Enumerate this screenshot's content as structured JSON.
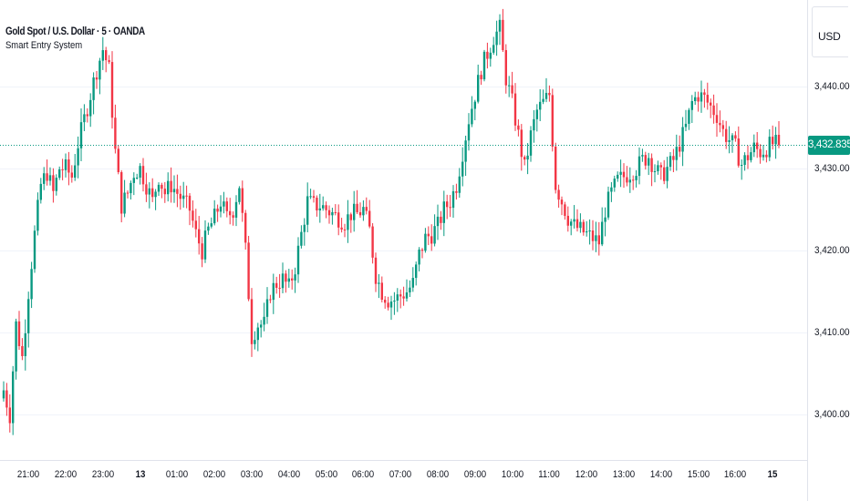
{
  "header": {
    "symbol_title": "Gold Spot / U.S. Dollar · 5 · OANDA",
    "indicator": "Smart Entry System"
  },
  "currency": "USD",
  "last_price_label": "3,432.835",
  "colors": {
    "up": "#089981",
    "down": "#f23645",
    "grid": "#f0f3fa",
    "last_price_line": "#089981"
  },
  "chart_data": {
    "type": "candlestick",
    "title": "Gold Spot / U.S. Dollar · 5 · OANDA",
    "currency": "USD",
    "y_ticks": [
      {
        "value": 3440,
        "label": "3,440.000"
      },
      {
        "value": 3430,
        "label": "3,430.000"
      },
      {
        "value": 3420,
        "label": "3,420.000"
      },
      {
        "value": 3410,
        "label": "3,410.000"
      },
      {
        "value": 3400,
        "label": "3,400.000"
      }
    ],
    "x_ticks": [
      {
        "label": "21:00",
        "bold": false,
        "i": 8
      },
      {
        "label": "22:00",
        "bold": false,
        "i": 20
      },
      {
        "label": "23:00",
        "bold": false,
        "i": 32
      },
      {
        "label": "13",
        "bold": true,
        "i": 44
      },
      {
        "label": "01:00",
        "bold": false,
        "i": 56
      },
      {
        "label": "02:00",
        "bold": false,
        "i": 68
      },
      {
        "label": "03:00",
        "bold": false,
        "i": 80
      },
      {
        "label": "04:00",
        "bold": false,
        "i": 92
      },
      {
        "label": "05:00",
        "bold": false,
        "i": 104
      },
      {
        "label": "06:00",
        "bold": false,
        "i": 116
      },
      {
        "label": "07:00",
        "bold": false,
        "i": 128
      },
      {
        "label": "08:00",
        "bold": false,
        "i": 140
      },
      {
        "label": "09:00",
        "bold": false,
        "i": 152
      },
      {
        "label": "10:00",
        "bold": false,
        "i": 164
      },
      {
        "label": "11:00",
        "bold": false,
        "i": 176
      },
      {
        "label": "12:00",
        "bold": false,
        "i": 188
      },
      {
        "label": "13:00",
        "bold": false,
        "i": 200
      },
      {
        "label": "14:00",
        "bold": false,
        "i": 212
      },
      {
        "label": "15:00",
        "bold": false,
        "i": 224
      },
      {
        "label": "16:00",
        "bold": false,
        "i": 236
      },
      {
        "label": "15",
        "bold": true,
        "i": 248
      }
    ],
    "ylim": [
      3394.5,
      3450.5
    ],
    "last_price": 3432.835,
    "close_keyframes": [
      [
        0,
        3403
      ],
      [
        2,
        3400
      ],
      [
        4,
        3411
      ],
      [
        6,
        3407
      ],
      [
        8,
        3415
      ],
      [
        10,
        3422
      ],
      [
        12,
        3428
      ],
      [
        14,
        3429.5
      ],
      [
        16,
        3427
      ],
      [
        18,
        3430
      ],
      [
        20,
        3430
      ],
      [
        22,
        3429
      ],
      [
        24,
        3433
      ],
      [
        26,
        3436
      ],
      [
        28,
        3439
      ],
      [
        30,
        3442
      ],
      [
        32,
        3444.5
      ],
      [
        34,
        3442
      ],
      [
        36,
        3432
      ],
      [
        38,
        3425.5
      ],
      [
        40,
        3427
      ],
      [
        42,
        3429.5
      ],
      [
        44,
        3430
      ],
      [
        46,
        3428
      ],
      [
        48,
        3426
      ],
      [
        50,
        3429
      ],
      [
        52,
        3427
      ],
      [
        54,
        3428
      ],
      [
        56,
        3427
      ],
      [
        58,
        3426
      ],
      [
        60,
        3425
      ],
      [
        62,
        3422
      ],
      [
        64,
        3420
      ],
      [
        66,
        3422.5
      ],
      [
        68,
        3424
      ],
      [
        70,
        3426
      ],
      [
        72,
        3424
      ],
      [
        74,
        3425
      ],
      [
        76,
        3428
      ],
      [
        78,
        3420
      ],
      [
        80,
        3409.5
      ],
      [
        82,
        3411
      ],
      [
        84,
        3411
      ],
      [
        86,
        3415
      ],
      [
        88,
        3416
      ],
      [
        90,
        3416.5
      ],
      [
        92,
        3415.5
      ],
      [
        94,
        3418
      ],
      [
        96,
        3422
      ],
      [
        98,
        3426
      ],
      [
        100,
        3425.5
      ],
      [
        102,
        3425.5
      ],
      [
        104,
        3425
      ],
      [
        106,
        3424.5
      ],
      [
        108,
        3424
      ],
      [
        110,
        3423.5
      ],
      [
        112,
        3424.5
      ],
      [
        114,
        3424.5
      ],
      [
        116,
        3425
      ],
      [
        118,
        3422.5
      ],
      [
        120,
        3417
      ],
      [
        122,
        3415
      ],
      [
        124,
        3414
      ],
      [
        126,
        3414
      ],
      [
        128,
        3414.5
      ],
      [
        130,
        3415
      ],
      [
        132,
        3416
      ],
      [
        134,
        3419.5
      ],
      [
        136,
        3421.5
      ],
      [
        138,
        3422
      ],
      [
        140,
        3423
      ],
      [
        142,
        3425
      ],
      [
        144,
        3426
      ],
      [
        146,
        3428
      ],
      [
        148,
        3432
      ],
      [
        150,
        3436
      ],
      [
        152,
        3439
      ],
      [
        154,
        3442
      ],
      [
        156,
        3444
      ],
      [
        158,
        3446
      ],
      [
        160,
        3447
      ],
      [
        162,
        3441
      ],
      [
        164,
        3438
      ],
      [
        166,
        3434
      ],
      [
        168,
        3430
      ],
      [
        170,
        3434
      ],
      [
        172,
        3437
      ],
      [
        174,
        3438
      ],
      [
        176,
        3439
      ],
      [
        178,
        3428
      ],
      [
        180,
        3426
      ],
      [
        182,
        3424
      ],
      [
        184,
        3423
      ],
      [
        186,
        3422.5
      ],
      [
        188,
        3422
      ],
      [
        190,
        3421.5
      ],
      [
        192,
        3421
      ],
      [
        194,
        3425
      ],
      [
        196,
        3427
      ],
      [
        198,
        3428.5
      ],
      [
        200,
        3429
      ],
      [
        202,
        3429.5
      ],
      [
        204,
        3430
      ],
      [
        206,
        3431
      ],
      [
        208,
        3431.5
      ],
      [
        210,
        3430
      ],
      [
        212,
        3429
      ],
      [
        214,
        3430
      ],
      [
        216,
        3431
      ],
      [
        218,
        3433
      ],
      [
        220,
        3435
      ],
      [
        222,
        3438
      ],
      [
        224,
        3439
      ],
      [
        226,
        3438.5
      ],
      [
        228,
        3437.5
      ],
      [
        230,
        3436.5
      ],
      [
        232,
        3434.5
      ],
      [
        234,
        3433.5
      ],
      [
        236,
        3432.5
      ],
      [
        238,
        3430.5
      ],
      [
        240,
        3431.5
      ],
      [
        242,
        3432.5
      ],
      [
        244,
        3432
      ],
      [
        246,
        3432.5
      ],
      [
        248,
        3433
      ],
      [
        250,
        3432.835
      ]
    ]
  }
}
